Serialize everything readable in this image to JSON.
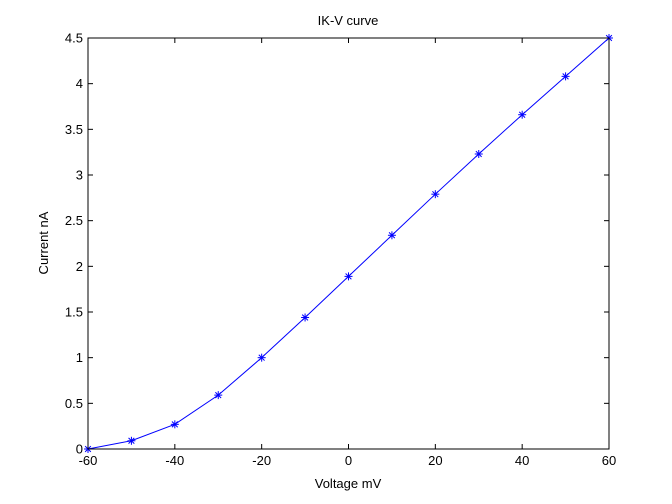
{
  "chart_data": {
    "type": "line",
    "title": "IK-V curve",
    "xlabel": "Voltage mV",
    "ylabel": "Current nA",
    "xlim": [
      -60,
      60
    ],
    "ylim": [
      0,
      4.5
    ],
    "xticks": [
      "-60",
      "-40",
      "-20",
      "0",
      "20",
      "40",
      "60"
    ],
    "yticks": [
      "0",
      "0.5",
      "1",
      "1.5",
      "2",
      "2.5",
      "3",
      "3.5",
      "4",
      "4.5"
    ],
    "grid": false,
    "marker": "asterisk",
    "series": [
      {
        "x": [
          -60,
          -50,
          -40,
          -30,
          -20,
          -10,
          0,
          10,
          20,
          30,
          40,
          50,
          60
        ],
        "y": [
          0.0,
          0.09,
          0.27,
          0.59,
          1.0,
          1.44,
          1.89,
          2.34,
          2.79,
          3.23,
          3.66,
          4.08,
          4.5
        ],
        "color": "#0000ff"
      }
    ]
  }
}
